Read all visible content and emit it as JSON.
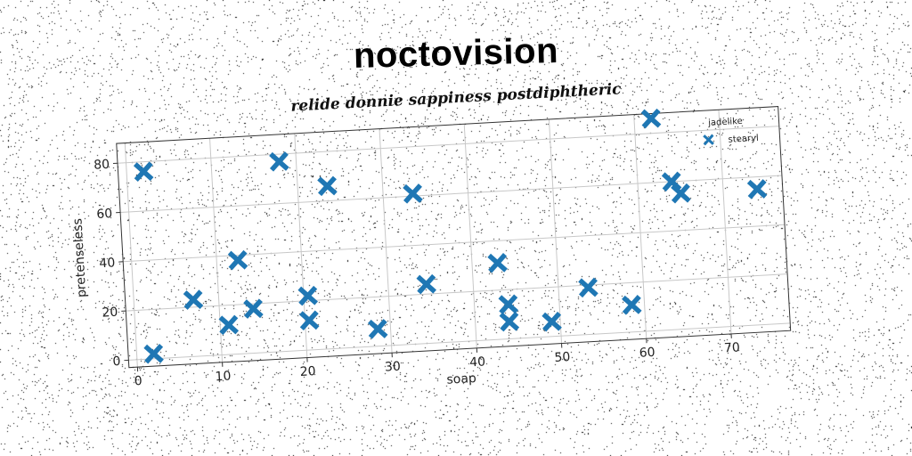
{
  "title": "noctovision",
  "subtitle": "relide donnie sappiness postdiphtheric",
  "chart_data": {
    "type": "scatter",
    "xlabel": "soap",
    "ylabel": "pretenseless",
    "xlim": [
      -1,
      77
    ],
    "ylim": [
      -3,
      88
    ],
    "xticks": [
      0,
      10,
      20,
      30,
      40,
      50,
      60,
      70
    ],
    "yticks": [
      0,
      20,
      40,
      60,
      80
    ],
    "grid": true,
    "legend": {
      "title": "jadelike",
      "position": "top-right",
      "entries": [
        "stearyl"
      ]
    },
    "series": [
      {
        "name": "stearyl",
        "color": "#1f77b4",
        "marker": "x",
        "points": [
          {
            "x": 2,
            "y": 76
          },
          {
            "x": 2,
            "y": 2
          },
          {
            "x": 7,
            "y": 23
          },
          {
            "x": 11,
            "y": 12
          },
          {
            "x": 12.5,
            "y": 38
          },
          {
            "x": 14,
            "y": 18
          },
          {
            "x": 18,
            "y": 77
          },
          {
            "x": 20.5,
            "y": 22
          },
          {
            "x": 20.5,
            "y": 12
          },
          {
            "x": 23.5,
            "y": 66
          },
          {
            "x": 28.5,
            "y": 7
          },
          {
            "x": 33.5,
            "y": 61
          },
          {
            "x": 34.5,
            "y": 24
          },
          {
            "x": 43,
            "y": 31
          },
          {
            "x": 44,
            "y": 14
          },
          {
            "x": 44,
            "y": 7
          },
          {
            "x": 49,
            "y": 6
          },
          {
            "x": 53.5,
            "y": 19
          },
          {
            "x": 58.5,
            "y": 11
          },
          {
            "x": 62,
            "y": 86
          },
          {
            "x": 64,
            "y": 60
          },
          {
            "x": 65,
            "y": 55
          },
          {
            "x": 74,
            "y": 55
          }
        ]
      }
    ]
  }
}
